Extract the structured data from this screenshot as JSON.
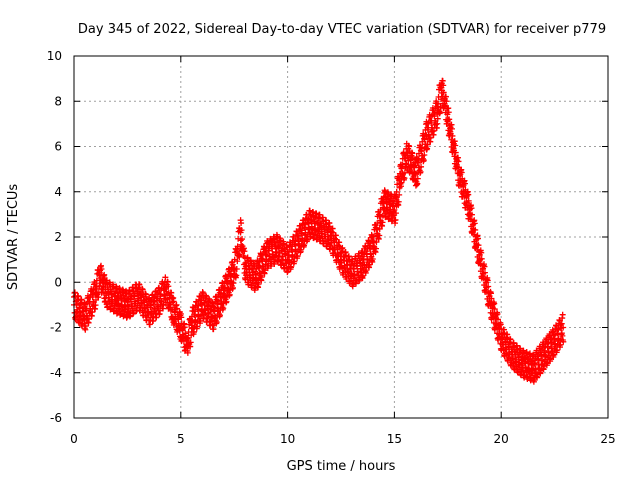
{
  "chart_data": {
    "type": "scatter",
    "title": "Day 345 of 2022, Sidereal Day-to-day VTEC variation (SDTVAR) for receiver p779",
    "xlabel": "GPS time / hours",
    "ylabel": "SDTVAR / TECUs",
    "xlim": [
      0,
      25
    ],
    "ylim": [
      -6,
      10
    ],
    "xticks": [
      0,
      5,
      10,
      15,
      20,
      25
    ],
    "yticks": [
      -6,
      -4,
      -2,
      0,
      2,
      4,
      6,
      8,
      10
    ],
    "grid": true,
    "marker": "+",
    "series_color": "#ff0000",
    "series": [
      {
        "name": "SDTVAR",
        "x": [
          0.0,
          0.5,
          1.0,
          1.2,
          1.5,
          2.0,
          2.5,
          3.0,
          3.5,
          4.0,
          4.3,
          4.6,
          5.0,
          5.3,
          5.5,
          6.0,
          6.5,
          7.0,
          7.5,
          7.8,
          8.0,
          8.5,
          9.0,
          9.5,
          10.0,
          10.5,
          11.0,
          11.5,
          12.0,
          12.5,
          13.0,
          13.5,
          14.0,
          14.5,
          15.0,
          15.3,
          15.6,
          16.0,
          16.5,
          17.0,
          17.2,
          17.5,
          18.0,
          18.5,
          19.0,
          19.5,
          20.0,
          20.5,
          21.0,
          21.5,
          22.0,
          22.5,
          22.9
        ],
        "y": [
          -1.0,
          -1.5,
          -0.5,
          0.3,
          -0.5,
          -0.8,
          -1.0,
          -0.6,
          -1.3,
          -0.8,
          -0.3,
          -1.2,
          -2.0,
          -2.8,
          -1.8,
          -1.0,
          -1.5,
          -0.5,
          0.5,
          2.2,
          0.6,
          0.2,
          1.2,
          1.5,
          1.0,
          1.8,
          2.6,
          2.4,
          2.0,
          1.0,
          0.4,
          0.8,
          1.6,
          3.5,
          3.2,
          4.8,
          5.6,
          4.8,
          6.5,
          7.5,
          8.6,
          7.2,
          4.8,
          3.2,
          1.0,
          -1.0,
          -2.5,
          -3.2,
          -3.6,
          -3.8,
          -3.2,
          -2.6,
          -2.0
        ]
      }
    ]
  }
}
